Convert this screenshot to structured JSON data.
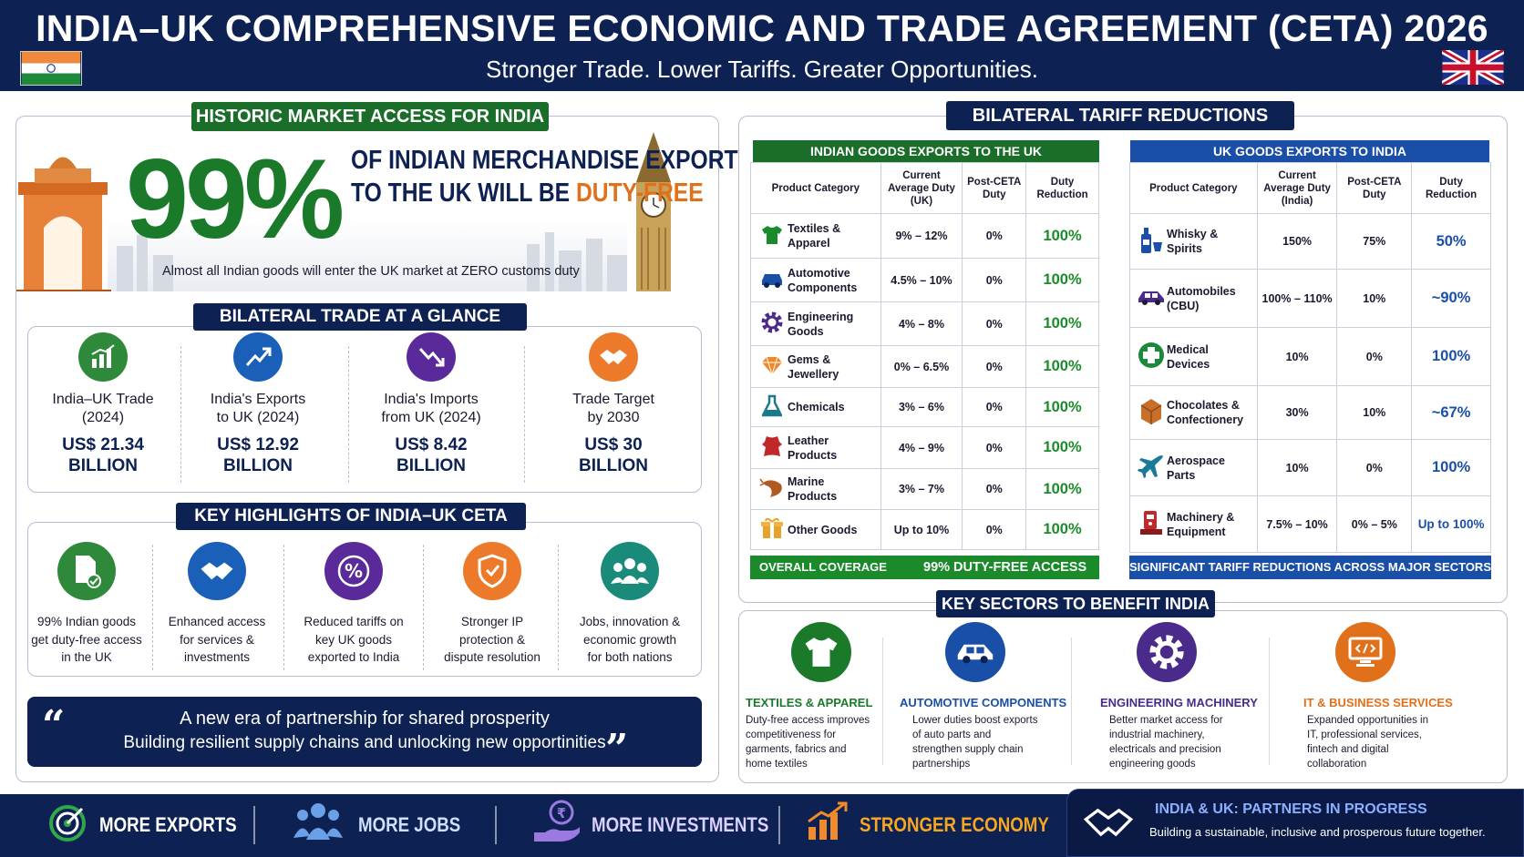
{
  "header": {
    "title": "INDIA–UK COMPREHENSIVE ECONOMIC AND TRADE AGREEMENT (CETA) 2026",
    "subtitle": "Stronger Trade. Lower Tariffs. Greater Opportunities."
  },
  "market_access": {
    "tag": "HISTORIC MARKET ACCESS FOR INDIA",
    "big_number": "99%",
    "line1": "OF INDIAN MERCHANDISE EXPORTS",
    "line2a": "TO THE UK WILL BE ",
    "line2b": "DUTY-FREE",
    "caption": "Almost all Indian goods will enter the UK market at ZERO customs duty"
  },
  "trade_glance": {
    "tag": "BILATERAL TRADE AT A GLANCE",
    "items": [
      {
        "label1": "India–UK Trade",
        "label2": "(2024)",
        "value1": "US$ 21.34",
        "value2": "BILLION",
        "icon": "bar-chart-icon"
      },
      {
        "label1": "India's Exports",
        "label2": "to UK (2024)",
        "value1": "US$ 12.92",
        "value2": "BILLION",
        "icon": "trend-up-icon"
      },
      {
        "label1": "India's Imports",
        "label2": "from UK (2024)",
        "value1": "US$ 8.42",
        "value2": "BILLION",
        "icon": "trend-down-icon"
      },
      {
        "label1": "Trade Target",
        "label2": "by 2030",
        "value1": "US$ 30",
        "value2": "BILLION",
        "icon": "handshake-icon"
      }
    ]
  },
  "highlights": {
    "tag": "KEY HIGHLIGHTS OF INDIA–UK CETA",
    "items": [
      {
        "l1": "99% Indian goods",
        "l2": "get duty-free access",
        "l3": "in the UK"
      },
      {
        "l1": "Enhanced access",
        "l2": "for services &",
        "l3": "investments"
      },
      {
        "l1": "Reduced tariffs on",
        "l2": "key UK goods",
        "l3": "exported to India"
      },
      {
        "l1": "Stronger IP",
        "l2": "protection &",
        "l3": "dispute resolution"
      },
      {
        "l1": "Jobs, innovation &",
        "l2": "economic growth",
        "l3": "for both nations"
      }
    ]
  },
  "quote": {
    "line1": "A new era of partnership for shared prosperity",
    "line2": "Building resilient supply chains and unlocking new opportinities"
  },
  "tariff": {
    "tag": "BILATERAL TARIFF REDUCTIONS",
    "india_title": "INDIAN GOODS EXPORTS TO THE UK",
    "uk_title": "UK GOODS EXPORTS TO INDIA",
    "india_headers": {
      "cat": "Product Category",
      "cur1": "Current",
      "cur2": "Average Duty",
      "cur3": "(UK)",
      "post1": "Post-CETA",
      "post2": "Duty",
      "red1": "Duty",
      "red2": "Reduction"
    },
    "uk_headers": {
      "cat": "Product Category",
      "cur1": "Current",
      "cur2": "Average Duty",
      "cur3": "(India)",
      "post1": "Post-CETA",
      "post2": "Duty",
      "red1": "Duty",
      "red2": "Reduction"
    },
    "india_rows": [
      {
        "c1": "Textiles &",
        "c2": "Apparel",
        "cur": "9% – 12%",
        "post": "0%",
        "red": "100%"
      },
      {
        "c1": "Automotive",
        "c2": "Components",
        "cur": "4.5% – 10%",
        "post": "0%",
        "red": "100%"
      },
      {
        "c1": "Engineering",
        "c2": "Goods",
        "cur": "4% – 8%",
        "post": "0%",
        "red": "100%"
      },
      {
        "c1": "Gems &",
        "c2": "Jewellery",
        "cur": "0% – 6.5%",
        "post": "0%",
        "red": "100%"
      },
      {
        "c1": "Chemicals",
        "c2": "",
        "cur": "3% – 6%",
        "post": "0%",
        "red": "100%"
      },
      {
        "c1": "Leather",
        "c2": "Products",
        "cur": "4% – 9%",
        "post": "0%",
        "red": "100%"
      },
      {
        "c1": "Marine",
        "c2": "Products",
        "cur": "3% – 7%",
        "post": "0%",
        "red": "100%"
      },
      {
        "c1": "Other Goods",
        "c2": "",
        "cur": "Up to 10%",
        "post": "0%",
        "red": "100%"
      }
    ],
    "uk_rows": [
      {
        "c1": "Whisky &",
        "c2": "Spirits",
        "cur": "150%",
        "post": "75%",
        "red": "50%"
      },
      {
        "c1": "Automobiles",
        "c2": "(CBU)",
        "cur": "100% – 110%",
        "post": "10%",
        "red": "~90%"
      },
      {
        "c1": "Medical",
        "c2": "Devices",
        "cur": "10%",
        "post": "0%",
        "red": "100%"
      },
      {
        "c1": "Chocolates &",
        "c2": "Confectionery",
        "cur": "30%",
        "post": "10%",
        "red": "~67%"
      },
      {
        "c1": "Aerospace",
        "c2": "Parts",
        "cur": "10%",
        "post": "0%",
        "red": "100%"
      },
      {
        "c1": "Machinery &",
        "c2": "Equipment",
        "cur": "7.5% – 10%",
        "post": "0% – 5%",
        "red": "Up to 100%"
      }
    ],
    "india_footer_left": "OVERALL COVERAGE",
    "india_footer_right": "99% DUTY-FREE ACCESS",
    "uk_footer": "SIGNIFICANT TARIFF REDUCTIONS ACROSS MAJOR SECTORS"
  },
  "sectors": {
    "tag": "KEY SECTORS TO BENEFIT INDIA",
    "items": [
      {
        "title": "TEXTILES & APPAREL",
        "d1": "Duty-free access improves",
        "d2": "competitiveness for",
        "d3": "garments, fabrics and",
        "d4": "home textiles",
        "color": "#1a7a2a"
      },
      {
        "title": "AUTOMOTIVE COMPONENTS",
        "d1": "Lower duties boost exports",
        "d2": "of auto parts and",
        "d3": "strengthen supply chain",
        "d4": "partnerships",
        "color": "#1a4fa8"
      },
      {
        "title": "ENGINEERING MACHINERY",
        "d1": "Better market access for",
        "d2": "industrial machinery,",
        "d3": "electricals and precision",
        "d4": "engineering goods",
        "color": "#4a2a8a"
      },
      {
        "title": "IT & BUSINESS SERVICES",
        "d1": "Expanded opportunities in",
        "d2": "IT, professional services,",
        "d3": "fintech and digital",
        "d4": "collaboration",
        "color": "#e0701a"
      }
    ]
  },
  "bottom": {
    "items": [
      "MORE EXPORTS",
      "MORE JOBS",
      "MORE INVESTMENTS",
      "STRONGER ECONOMY"
    ],
    "partner_title": "INDIA & UK: PARTNERS IN PROGRESS",
    "partner_sub": "Building a sustainable, inclusive and prosperous future together."
  },
  "colors": {
    "navy": "#0d2152",
    "green": "#1a6e2a",
    "orange": "#e8762a",
    "blue": "#1a4fa8"
  }
}
